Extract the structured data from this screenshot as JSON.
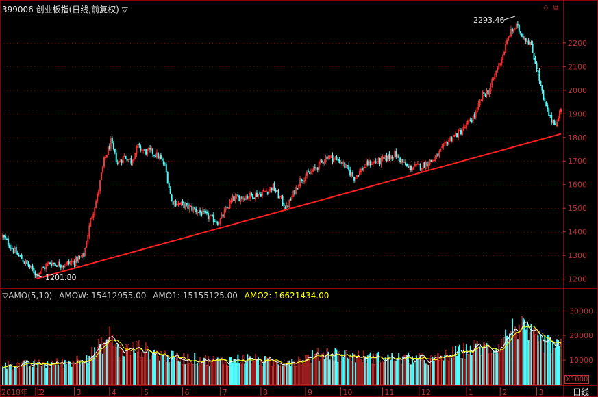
{
  "title": "399006 创业板指(日线,前复权) ▽",
  "price_axis": {
    "ticks": [
      "2200",
      "2100",
      "2000",
      "1900",
      "1800",
      "1700",
      "1600",
      "1500",
      "1400",
      "1300",
      "1200"
    ]
  },
  "volume_axis": {
    "ticks": [
      "30000",
      "20000",
      "10000"
    ],
    "unit": "X1000"
  },
  "time_axis": {
    "year_label": "2018年",
    "months": [
      "1",
      "2",
      "3",
      "4",
      "5",
      "6",
      "7",
      "8",
      "9",
      "10",
      "11",
      "12",
      "1",
      "2",
      "3"
    ],
    "prefix": "ǀ"
  },
  "period_label": "日线",
  "annotations": {
    "high": "2293.46",
    "low": "1201.80"
  },
  "amo": {
    "toggle": "▽",
    "name": "AMO(5,10)",
    "amow": "AMOW: 15412955.00",
    "amo1": "AMO1: 15155125.00",
    "amo2": "AMO2: 16621434.00"
  },
  "colors": {
    "up": "#ff3232",
    "down": "#54fcfc",
    "trendline": "#ff2020",
    "ma_white": "#ffffff",
    "ma_yellow": "#ffff00",
    "grid": "#8b0000",
    "axis_text": "#c03030"
  },
  "controls": {
    "diamond": "◇",
    "restore": "⧉"
  },
  "chart_data": {
    "type": "candlestick",
    "title": "399006 创业板指(日线,前复权)",
    "price_range": [
      1170,
      2330
    ],
    "high_label": 2293.46,
    "low_label": 1201.8,
    "price_anchors": [
      [
        0,
        1380
      ],
      [
        10,
        1310
      ],
      [
        20,
        1250
      ],
      [
        25,
        1220
      ],
      [
        35,
        1270
      ],
      [
        45,
        1260
      ],
      [
        55,
        1280
      ],
      [
        60,
        1300
      ],
      [
        65,
        1450
      ],
      [
        70,
        1550
      ],
      [
        75,
        1700
      ],
      [
        80,
        1780
      ],
      [
        85,
        1690
      ],
      [
        90,
        1720
      ],
      [
        95,
        1700
      ],
      [
        100,
        1760
      ],
      [
        105,
        1740
      ],
      [
        110,
        1740
      ],
      [
        115,
        1720
      ],
      [
        120,
        1680
      ],
      [
        125,
        1530
      ],
      [
        130,
        1520
      ],
      [
        140,
        1500
      ],
      [
        150,
        1470
      ],
      [
        160,
        1440
      ],
      [
        170,
        1540
      ],
      [
        180,
        1550
      ],
      [
        190,
        1560
      ],
      [
        200,
        1590
      ],
      [
        210,
        1500
      ],
      [
        220,
        1620
      ],
      [
        230,
        1660
      ],
      [
        240,
        1720
      ],
      [
        250,
        1700
      ],
      [
        260,
        1630
      ],
      [
        270,
        1690
      ],
      [
        280,
        1700
      ],
      [
        290,
        1730
      ],
      [
        300,
        1670
      ],
      [
        310,
        1680
      ],
      [
        320,
        1710
      ],
      [
        330,
        1790
      ],
      [
        340,
        1830
      ],
      [
        350,
        1900
      ],
      [
        355,
        1980
      ],
      [
        360,
        2000
      ],
      [
        365,
        2080
      ],
      [
        370,
        2150
      ],
      [
        375,
        2240
      ],
      [
        380,
        2270
      ],
      [
        385,
        2230
      ],
      [
        390,
        2200
      ],
      [
        395,
        2100
      ],
      [
        400,
        1960
      ],
      [
        405,
        1880
      ],
      [
        410,
        1860
      ],
      [
        413,
        1930
      ]
    ],
    "volume_anchors": [
      [
        0,
        8000
      ],
      [
        20,
        8000
      ],
      [
        50,
        9000
      ],
      [
        65,
        12000
      ],
      [
        75,
        17000
      ],
      [
        80,
        20000
      ],
      [
        85,
        14000
      ],
      [
        95,
        14000
      ],
      [
        100,
        15000
      ],
      [
        110,
        13000
      ],
      [
        125,
        11000
      ],
      [
        140,
        10500
      ],
      [
        160,
        9500
      ],
      [
        180,
        10500
      ],
      [
        200,
        9000
      ],
      [
        220,
        10000
      ],
      [
        240,
        13000
      ],
      [
        250,
        12000
      ],
      [
        270,
        11000
      ],
      [
        300,
        10500
      ],
      [
        320,
        10000
      ],
      [
        330,
        12000
      ],
      [
        350,
        15000
      ],
      [
        365,
        15000
      ],
      [
        380,
        24000
      ],
      [
        385,
        22000
      ],
      [
        395,
        18000
      ],
      [
        405,
        16000
      ],
      [
        413,
        15000
      ]
    ],
    "trendline": {
      "from": [
        25,
        1201.8
      ],
      "to": [
        413,
        1815
      ]
    },
    "volume_range": [
      0,
      34000
    ]
  }
}
